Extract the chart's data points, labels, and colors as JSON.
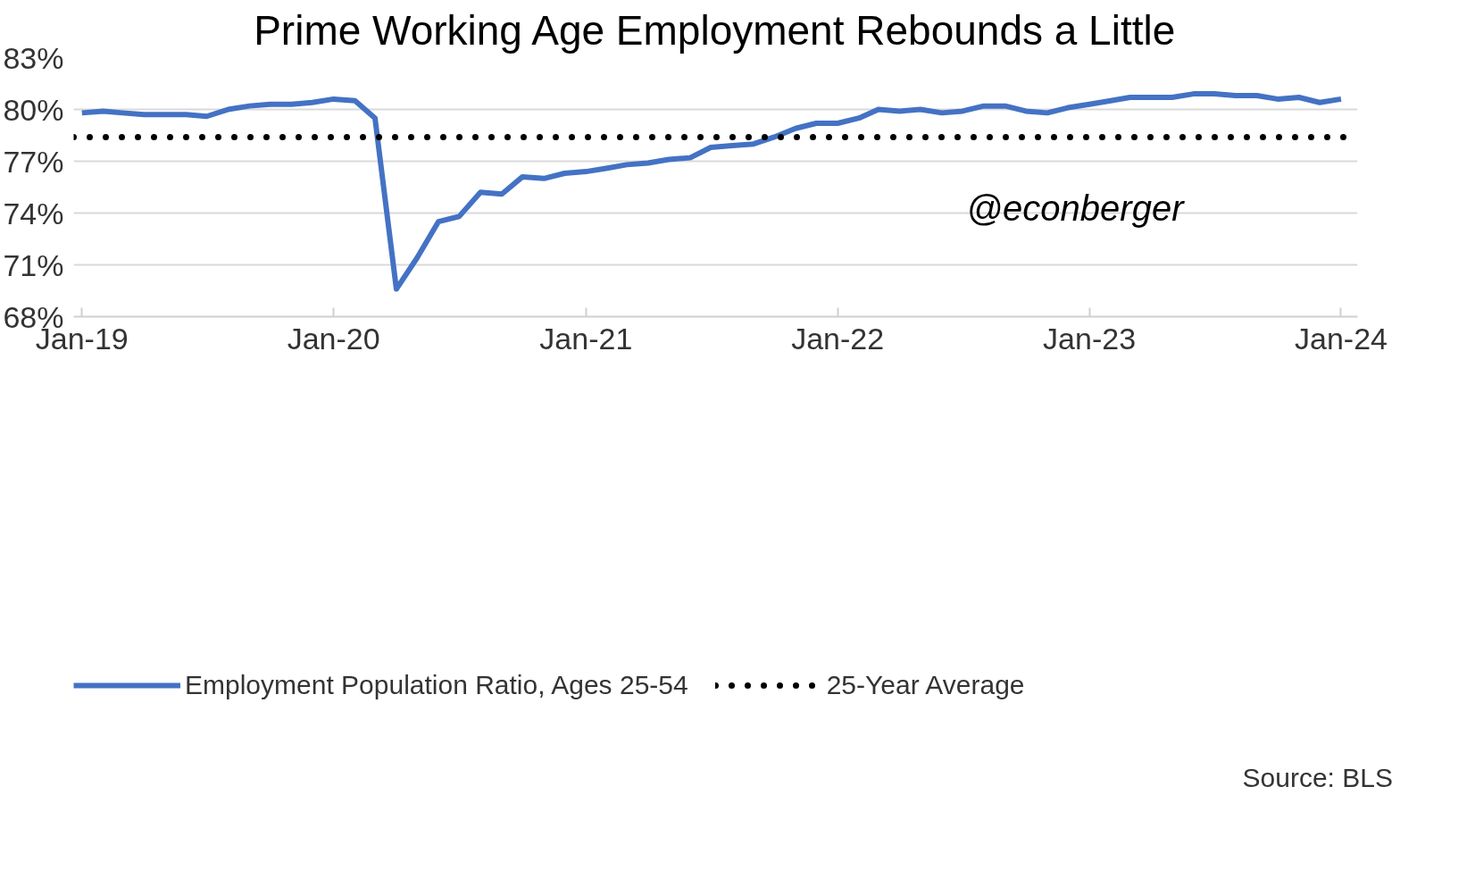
{
  "chart_data": {
    "type": "line",
    "title": "Prime Working Age Employment Rebounds a Little",
    "x": [
      "2019-01",
      "2019-02",
      "2019-03",
      "2019-04",
      "2019-05",
      "2019-06",
      "2019-07",
      "2019-08",
      "2019-09",
      "2019-10",
      "2019-11",
      "2019-12",
      "2020-01",
      "2020-02",
      "2020-03",
      "2020-04",
      "2020-05",
      "2020-06",
      "2020-07",
      "2020-08",
      "2020-09",
      "2020-10",
      "2020-11",
      "2020-12",
      "2021-01",
      "2021-02",
      "2021-03",
      "2021-04",
      "2021-05",
      "2021-06",
      "2021-07",
      "2021-08",
      "2021-09",
      "2021-10",
      "2021-11",
      "2021-12",
      "2022-01",
      "2022-02",
      "2022-03",
      "2022-04",
      "2022-05",
      "2022-06",
      "2022-07",
      "2022-08",
      "2022-09",
      "2022-10",
      "2022-11",
      "2022-12",
      "2023-01",
      "2023-02",
      "2023-03",
      "2023-04",
      "2023-05",
      "2023-06",
      "2023-07",
      "2023-08",
      "2023-09",
      "2023-10",
      "2023-11",
      "2023-12",
      "2024-01"
    ],
    "series": [
      {
        "name": "Employment Population Ratio, Ages 25-54",
        "color": "#4472c4",
        "values": [
          79.8,
          79.9,
          79.8,
          79.7,
          79.7,
          79.7,
          79.6,
          80.0,
          80.2,
          80.3,
          80.3,
          80.4,
          80.6,
          80.5,
          79.5,
          69.6,
          71.4,
          73.5,
          73.8,
          75.2,
          75.1,
          76.1,
          76.0,
          76.3,
          76.4,
          76.6,
          76.8,
          76.9,
          77.1,
          77.2,
          77.8,
          77.9,
          78.0,
          78.4,
          78.9,
          79.2,
          79.2,
          79.5,
          80.0,
          79.9,
          80.0,
          79.8,
          79.9,
          80.2,
          80.2,
          79.9,
          79.8,
          80.1,
          80.3,
          80.5,
          80.7,
          80.7,
          80.7,
          80.9,
          80.9,
          80.8,
          80.8,
          80.6,
          80.7,
          80.4,
          80.6
        ]
      }
    ],
    "ref_lines": [
      {
        "axis": "y",
        "value": 78.4,
        "label": "25-Year Average",
        "color": "#000000",
        "line_style": "dotted"
      }
    ],
    "xlim": [
      "2018-12-20",
      "2024-01-25"
    ],
    "xticks": [
      {
        "value": "2019-01",
        "label": "Jan-19"
      },
      {
        "value": "2020-01",
        "label": "Jan-20"
      },
      {
        "value": "2021-01",
        "label": "Jan-21"
      },
      {
        "value": "2022-01",
        "label": "Jan-22"
      },
      {
        "value": "2023-01",
        "label": "Jan-23"
      },
      {
        "value": "2024-01",
        "label": "Jan-24"
      }
    ],
    "ylim": [
      68,
      83
    ],
    "yticks": [
      {
        "value": 68,
        "label": "68%"
      },
      {
        "value": 71,
        "label": "71%"
      },
      {
        "value": 74,
        "label": "74%"
      },
      {
        "value": 77,
        "label": "77%"
      },
      {
        "value": 80,
        "label": "80%"
      },
      {
        "value": 83,
        "label": "83%"
      }
    ],
    "grid": "y",
    "legend": "bottom",
    "line_style": "solid",
    "marker": "none",
    "annotations": [
      "@econberger",
      "Source: BLS"
    ]
  }
}
